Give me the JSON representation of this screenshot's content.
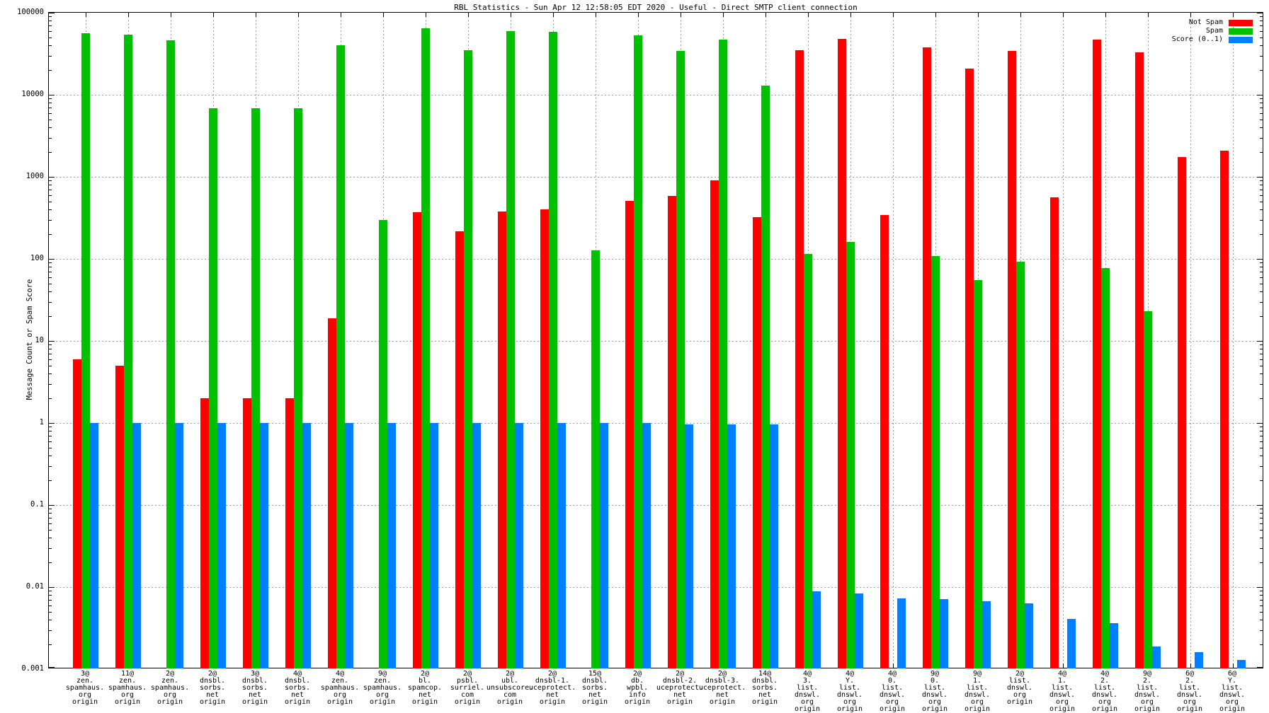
{
  "title": "RBL Statistics - Sun Apr 12 12:58:05 EDT 2020 - Useful - Direct SMTP client connection",
  "y_axis": {
    "label": "Message Count or Spam Score",
    "ticks": [
      "100000",
      "10000",
      "1000",
      "100",
      "10",
      "1",
      "0.1",
      "0.01",
      "0.001"
    ]
  },
  "legend": {
    "items": [
      {
        "label": "Not Spam",
        "color": "#ff0000"
      },
      {
        "label": "Spam",
        "color": "#00c000"
      },
      {
        "label": "Score (0..1)",
        "color": "#0080ff"
      }
    ]
  },
  "chart_data": {
    "type": "bar",
    "scale": "log",
    "ylim": [
      0.001,
      100000
    ],
    "grid": true,
    "legend_position": "top-right",
    "title": "RBL Statistics - Sun Apr 12 12:58:05 EDT 2020 - Useful - Direct SMTP client connection",
    "xlabel": "",
    "ylabel": "Message Count or Spam Score",
    "categories": [
      [
        "3@",
        "zen.",
        "spamhaus.",
        "org",
        "origin"
      ],
      [
        "11@",
        "zen.",
        "spamhaus.",
        "org",
        "origin"
      ],
      [
        "2@",
        "zen.",
        "spamhaus.",
        "org",
        "origin"
      ],
      [
        "2@",
        "dnsbl.",
        "sorbs.",
        "net",
        "origin"
      ],
      [
        "3@",
        "dnsbl.",
        "sorbs.",
        "net",
        "origin"
      ],
      [
        "4@",
        "dnsbl.",
        "sorbs.",
        "net",
        "origin"
      ],
      [
        "4@",
        "zen.",
        "spamhaus.",
        "org",
        "origin"
      ],
      [
        "9@",
        "zen.",
        "spamhaus.",
        "org",
        "origin"
      ],
      [
        "2@",
        "bl.",
        "spamcop.",
        "net",
        "origin"
      ],
      [
        "2@",
        "psbl.",
        "surriel.",
        "com",
        "origin"
      ],
      [
        "2@",
        "ubl.",
        "unsubscore.",
        "com",
        "origin"
      ],
      [
        "2@",
        "dnsbl-1.",
        "uceprotect.",
        "net",
        "origin"
      ],
      [
        "15@",
        "dnsbl.",
        "sorbs.",
        "net",
        "origin"
      ],
      [
        "2@",
        "db.",
        "wpbl.",
        "info",
        "origin"
      ],
      [
        "2@",
        "dnsbl-2.",
        "uceprotect.",
        "net",
        "origin"
      ],
      [
        "2@",
        "dnsbl-3.",
        "uceprotect.",
        "net",
        "origin"
      ],
      [
        "14@",
        "dnsbl.",
        "sorbs.",
        "net",
        "origin"
      ],
      [
        "4@",
        "3.",
        "list.",
        "dnswl.",
        "org",
        "origin"
      ],
      [
        "4@",
        "Y.",
        "list.",
        "dnswl.",
        "org",
        "origin"
      ],
      [
        "4@",
        "0.",
        "list.",
        "dnswl.",
        "org",
        "origin"
      ],
      [
        "9@",
        "0.",
        "list.",
        "dnswl.",
        "org",
        "origin"
      ],
      [
        "9@",
        "1.",
        "list.",
        "dnswl.",
        "org",
        "origin"
      ],
      [
        "2@",
        "list.",
        "dnswl.",
        "org",
        "origin"
      ],
      [
        "4@",
        "1.",
        "list.",
        "dnswl.",
        "org",
        "origin"
      ],
      [
        "4@",
        "2.",
        "list.",
        "dnswl.",
        "org",
        "origin"
      ],
      [
        "9@",
        "2.",
        "list.",
        "dnswl.",
        "org",
        "origin"
      ],
      [
        "6@",
        "2.",
        "list.",
        "dnswl.",
        "org",
        "origin"
      ],
      [
        "6@",
        "Y.",
        "list.",
        "dnswl.",
        "org",
        "origin"
      ]
    ],
    "series": [
      {
        "name": "Not Spam",
        "color": "#ff0000",
        "values": [
          6,
          5,
          null,
          2,
          2,
          2,
          19,
          null,
          370,
          215,
          380,
          405,
          null,
          510,
          580,
          900,
          320,
          35000,
          48000,
          340,
          38000,
          21000,
          34000,
          560,
          47000,
          33000,
          1750,
          2100
        ]
      },
      {
        "name": "Spam",
        "color": "#00c000",
        "values": [
          56000,
          54000,
          46000,
          6900,
          6900,
          6800,
          40000,
          300,
          65000,
          35000,
          60000,
          59000,
          128,
          53000,
          34000,
          47000,
          13000,
          115,
          160,
          null,
          108,
          55,
          92,
          null,
          78,
          23,
          null,
          null
        ]
      },
      {
        "name": "Score (0..1)",
        "color": "#0080ff",
        "values": [
          1,
          1,
          1,
          1,
          1,
          1,
          1,
          1,
          1,
          1,
          1,
          1,
          1,
          1,
          0.97,
          0.97,
          0.97,
          0.0088,
          0.0083,
          0.0073,
          0.0071,
          0.0067,
          0.0063,
          0.0041,
          0.0036,
          0.0019,
          0.0016,
          0.0013
        ]
      }
    ]
  }
}
